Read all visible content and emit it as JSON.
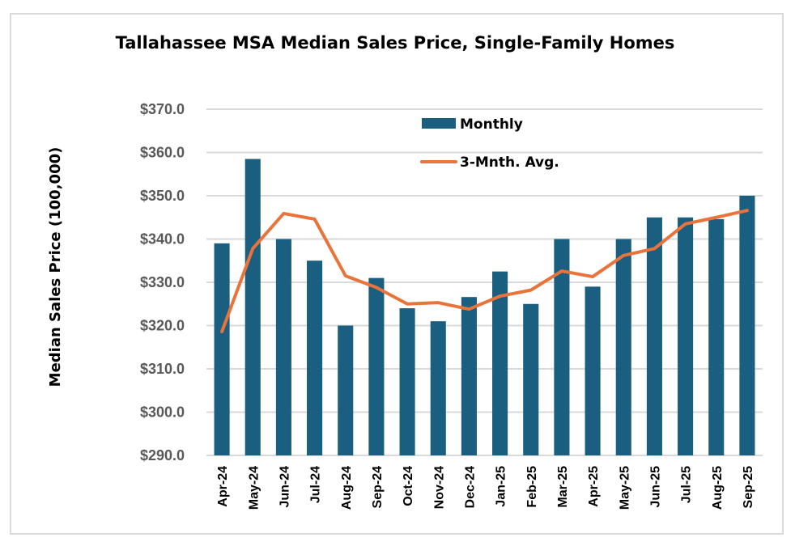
{
  "chart_data": {
    "type": "bar",
    "title": "Tallahassee MSA Median Sales Price, Single-Family Homes",
    "xlabel": "",
    "ylabel": "Median Sales Price (100,000)",
    "ylim": [
      290,
      370
    ],
    "ytick_step": 10,
    "ytick_labels": [
      "$290.0",
      "$300.0",
      "$310.0",
      "$320.0",
      "$330.0",
      "$340.0",
      "$350.0",
      "$360.0",
      "$370.0"
    ],
    "grid": true,
    "legend_position": "top-center",
    "categories": [
      "Apr-24",
      "May-24",
      "Jun-24",
      "Jul-24",
      "Aug-24",
      "Sep-24",
      "Oct-24",
      "Nov-24",
      "Dec-24",
      "Jan-25",
      "Feb-25",
      "Mar-25",
      "Apr-25",
      "May-25",
      "Jun-25",
      "Jul-25",
      "Aug-25",
      "Sep-25"
    ],
    "series": [
      {
        "name": "Monthly",
        "type": "bar",
        "color": "#1a5e80",
        "values": [
          339.0,
          358.5,
          340.0,
          335.0,
          320.0,
          331.0,
          324.0,
          321.0,
          326.6,
          332.5,
          325.0,
          340.0,
          329.0,
          340.0,
          345.0,
          345.0,
          344.6,
          350.0
        ]
      },
      {
        "name": "3-Mnth. Avg.",
        "type": "line",
        "color": "#e8743b",
        "values": [
          318.6,
          337.8,
          345.9,
          344.6,
          331.5,
          328.8,
          325.0,
          325.3,
          323.8,
          326.8,
          328.2,
          332.6,
          331.3,
          336.2,
          337.8,
          343.5,
          345.0,
          346.6
        ]
      }
    ]
  }
}
